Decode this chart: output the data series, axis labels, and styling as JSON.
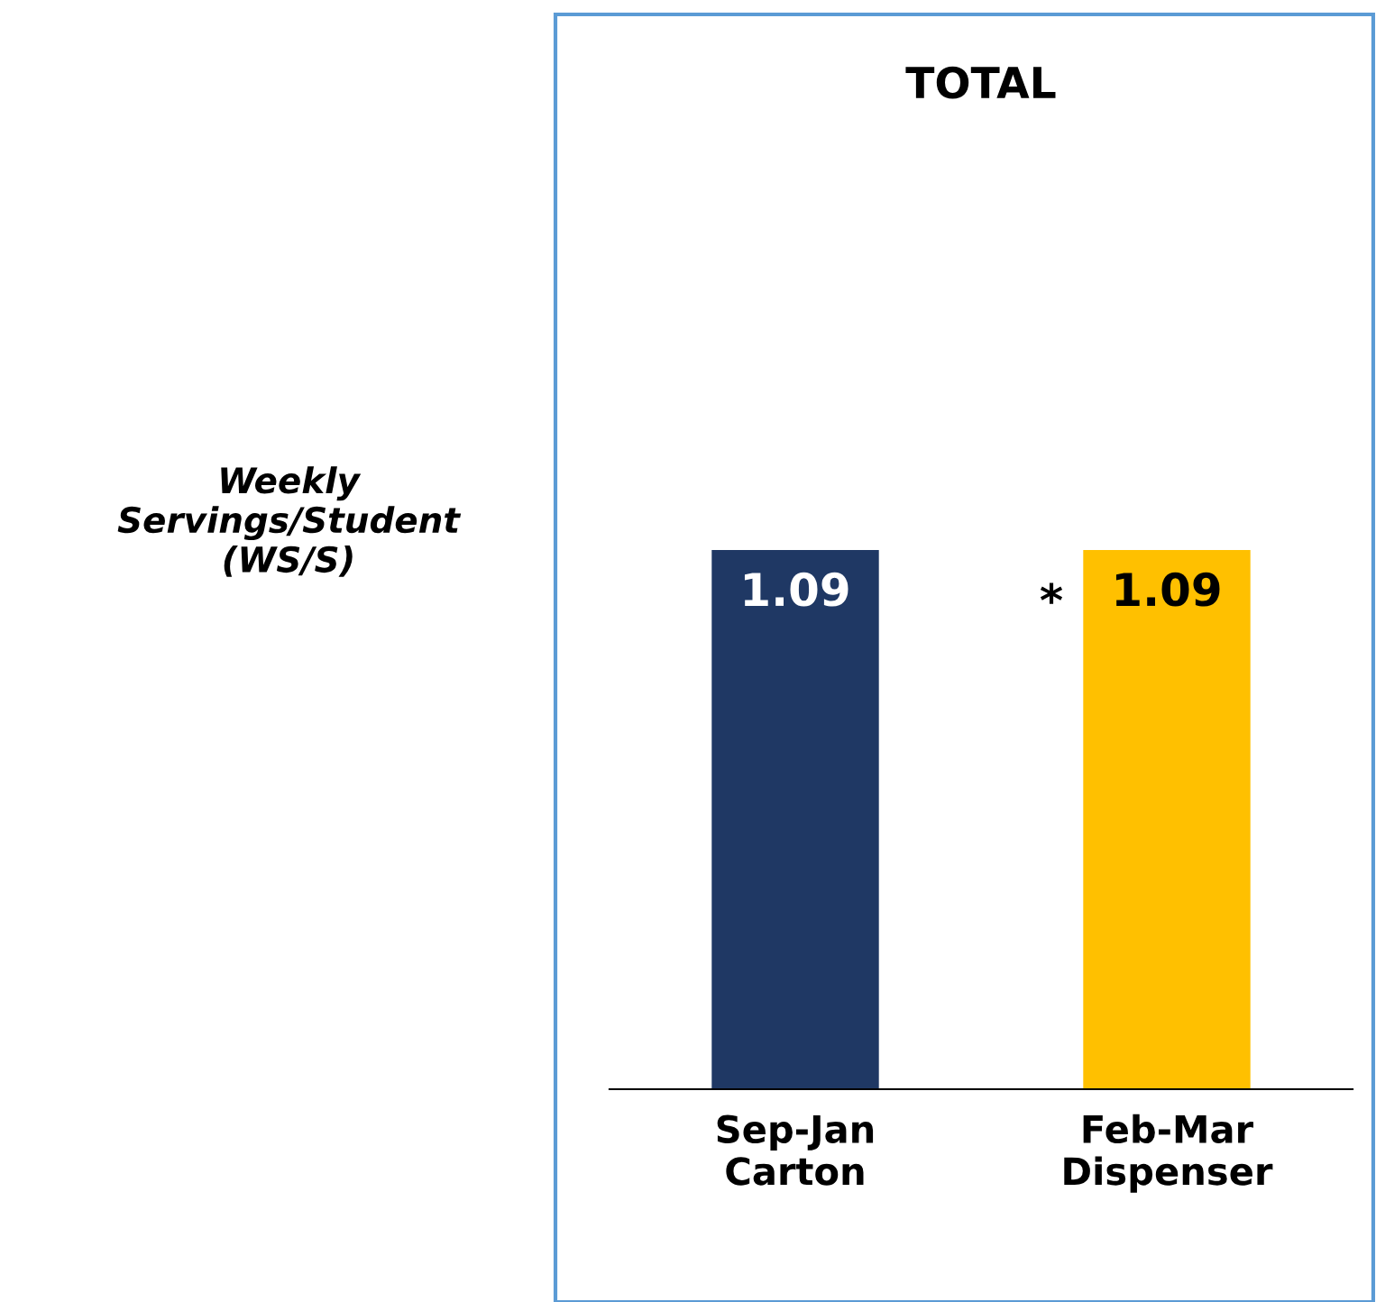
{
  "chart_data": {
    "type": "bar",
    "title": "TOTAL",
    "ylabel": "Weekly\nServings/Student\n(WS/S)",
    "categories": [
      "Sep-Jan\nCarton",
      "Feb-Mar\nDispenser"
    ],
    "values": [
      1.09,
      1.09
    ],
    "colors": [
      "#1f3864",
      "#ffc000"
    ],
    "data_labels": true,
    "grid": false,
    "legend": false,
    "annotations": [
      {
        "text": "*",
        "x": "Feb-Mar\nDispenser",
        "y": 1.09
      }
    ]
  }
}
